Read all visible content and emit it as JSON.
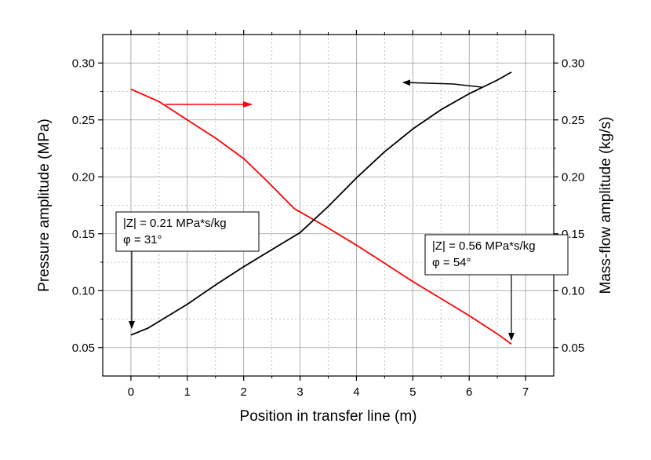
{
  "chart_data": {
    "type": "line",
    "xlabel": "Position in transfer line (m)",
    "ylabel_left": "Pressure amplitude (MPa)",
    "ylabel_right": "Mass-flow amplitude (kg/s)",
    "xlim": [
      -0.5,
      7.5
    ],
    "ylim_left": [
      0.025,
      0.325
    ],
    "ylim_right": [
      0.025,
      0.325
    ],
    "x_ticks": [
      0,
      1,
      2,
      3,
      4,
      5,
      6,
      7
    ],
    "x_tick_labels": [
      "0",
      "1",
      "2",
      "3",
      "4",
      "5",
      "6",
      "7"
    ],
    "y_ticks": [
      0.05,
      0.1,
      0.15,
      0.2,
      0.25,
      0.3
    ],
    "y_tick_labels_left": [
      "0.05",
      "0.10",
      "0.15",
      "0.20",
      "0.25",
      "0.30"
    ],
    "y_tick_labels_right": [
      "0.05",
      "0.10",
      "0.15",
      "0.20",
      "0.25",
      "0.30"
    ],
    "grid": true,
    "series": [
      {
        "axis": "left",
        "color": "#ff0000",
        "x": [
          0,
          0.5,
          1.0,
          1.5,
          2.0,
          2.4,
          2.9,
          3.5,
          4.0,
          4.5,
          5.0,
          5.5,
          6.0,
          6.5,
          6.75
        ],
        "y": [
          0.277,
          0.266,
          0.25,
          0.234,
          0.216,
          0.197,
          0.172,
          0.155,
          0.14,
          0.124,
          0.108,
          0.093,
          0.078,
          0.062,
          0.053
        ]
      },
      {
        "axis": "right",
        "color": "#000000",
        "x": [
          0,
          0.3,
          0.5,
          1.0,
          1.5,
          2.0,
          2.5,
          3.0,
          3.5,
          4.0,
          4.5,
          5.0,
          5.5,
          6.0,
          6.5,
          6.75
        ],
        "y": [
          0.061,
          0.067,
          0.073,
          0.088,
          0.105,
          0.121,
          0.136,
          0.151,
          0.174,
          0.199,
          0.222,
          0.242,
          0.259,
          0.273,
          0.285,
          0.292
        ]
      }
    ],
    "annotations": [
      {
        "lines": [
          "|Z| = 0.21 MPa*s/kg",
          "φ = 31°"
        ]
      },
      {
        "lines": [
          "|Z| = 0.56 MPa*s/kg",
          "φ = 54°"
        ]
      }
    ]
  }
}
